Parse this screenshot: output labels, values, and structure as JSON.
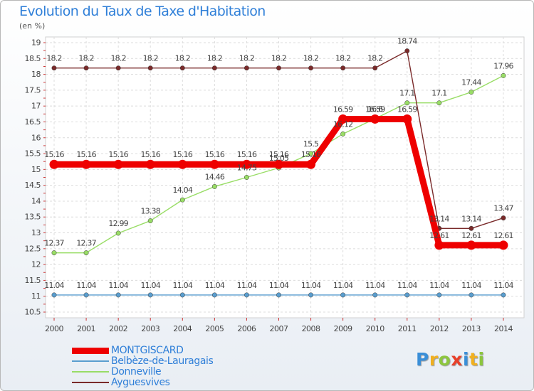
{
  "title": "Evolution du Taux de Taxe d'Habitation",
  "subtitle": "(en %)",
  "logo": {
    "letters": [
      {
        "ch": "P",
        "color": "#3a8fd8"
      },
      {
        "ch": "r",
        "color": "#f0b020"
      },
      {
        "ch": "o",
        "color": "#8cc63e"
      },
      {
        "ch": "x",
        "color": "#e8402a"
      },
      {
        "ch": "i",
        "color": "#3a8fd8"
      },
      {
        "ch": "t",
        "color": "#f0b020"
      },
      {
        "ch": "i",
        "color": "#8cc63e"
      }
    ]
  },
  "chart_data": {
    "type": "line",
    "categories": [
      "2000",
      "2001",
      "2002",
      "2003",
      "2004",
      "2005",
      "2006",
      "2007",
      "2008",
      "2009",
      "2010",
      "2011",
      "2012",
      "2013",
      "2014"
    ],
    "ylim": [
      10.5,
      19
    ],
    "yticks": [
      "10.5",
      "11",
      "11.5",
      "12",
      "12.5",
      "13",
      "13.5",
      "14",
      "14.5",
      "15",
      "15.5",
      "16",
      "16.5",
      "17",
      "17.5",
      "18",
      "18.5",
      "19"
    ],
    "grid": true,
    "legend_position": "bottom-left",
    "series": [
      {
        "name": "MONTGISCARD",
        "color": "#ee0000",
        "style": "thick",
        "values": [
          15.16,
          15.16,
          15.16,
          15.16,
          15.16,
          15.16,
          15.16,
          15.16,
          15.16,
          16.59,
          16.59,
          16.59,
          12.61,
          12.61,
          12.61
        ],
        "labels": [
          "15.16",
          "15.16",
          "15.16",
          "15.16",
          "15.16",
          "15.16",
          "15.16",
          "15.16",
          "15.16",
          "16.59",
          "16.59",
          "16.59",
          "12.61",
          "12.61",
          "12.61"
        ]
      },
      {
        "name": "Belbèze-de-Lauragais",
        "color": "#5a9ecf",
        "style": "thin",
        "values": [
          11.04,
          11.04,
          11.04,
          11.04,
          11.04,
          11.04,
          11.04,
          11.04,
          11.04,
          11.04,
          11.04,
          11.04,
          11.04,
          11.04,
          11.04
        ],
        "labels": [
          "11.04",
          "11.04",
          "11.04",
          "11.04",
          "11.04",
          "11.04",
          "11.04",
          "11.04",
          "11.04",
          "11.04",
          "11.04",
          "11.04",
          "11.04",
          "11.04",
          "11.04"
        ]
      },
      {
        "name": "Donneville",
        "color": "#99dd66",
        "style": "thin",
        "values": [
          12.37,
          12.37,
          12.99,
          13.38,
          14.04,
          14.46,
          14.75,
          15.05,
          15.5,
          16.12,
          16.6,
          17.1,
          17.1,
          17.44,
          17.96
        ],
        "labels": [
          "12.37",
          "12.37",
          "12.99",
          "13.38",
          "14.04",
          "14.46",
          "14.75",
          "15.05",
          "15.5",
          "16.12",
          "16.6",
          "17.1",
          "17.1",
          "17.44",
          "17.96"
        ]
      },
      {
        "name": "Ayguesvives",
        "color": "#7a2a2a",
        "style": "thin",
        "values": [
          18.2,
          18.2,
          18.2,
          18.2,
          18.2,
          18.2,
          18.2,
          18.2,
          18.2,
          18.2,
          18.2,
          18.74,
          13.14,
          13.14,
          13.47
        ],
        "labels": [
          "18.2",
          "18.2",
          "18.2",
          "18.2",
          "18.2",
          "18.2",
          "18.2",
          "18.2",
          "18.2",
          "18.2",
          "18.2",
          "18.74",
          "13.14",
          "13.14",
          "13.47"
        ]
      }
    ]
  }
}
